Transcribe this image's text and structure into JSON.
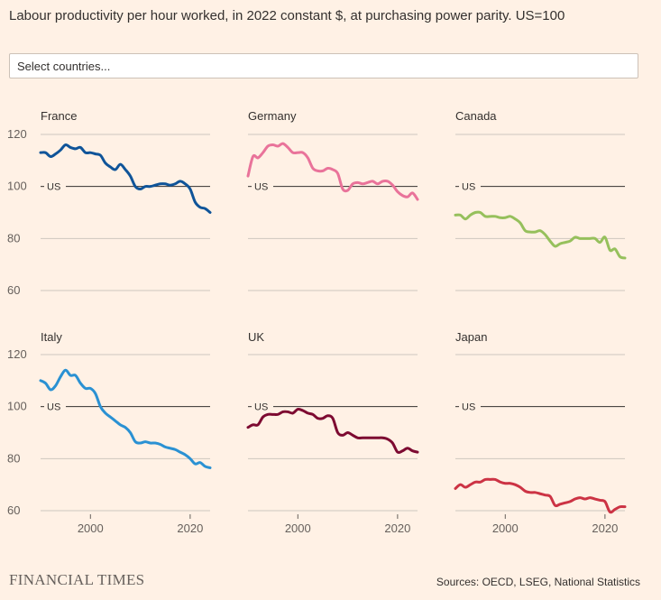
{
  "header": {
    "title": "Labour productivity per hour worked, in 2022 constant $, at purchasing power parity. US=100"
  },
  "controls": {
    "country_search_placeholder": "Select countries..."
  },
  "footer": {
    "logo": "FINANCIAL TIMES",
    "source": "Sources: OECD, LSEG, National Statistics"
  },
  "chart_data": {
    "type": "line",
    "layout": "small-multiples",
    "title": "Labour productivity per hour worked, in 2022 constant $, at purchasing power parity. US=100",
    "xlim": [
      1990,
      2024
    ],
    "ylim": [
      60,
      120
    ],
    "y_ticks": [
      60,
      80,
      100,
      120
    ],
    "x_ticks": [
      2000,
      2020
    ],
    "reference_line": {
      "value": 100,
      "label": "US"
    },
    "grid": true,
    "colors": {
      "France": "#0F5499",
      "Germany": "#E9739A",
      "Canada": "#96C05C",
      "Italy": "#2A91D3",
      "UK": "#7D0A31",
      "Japan": "#CC3344"
    },
    "x": [
      1990,
      1991,
      1992,
      1993,
      1994,
      1995,
      1996,
      1997,
      1998,
      1999,
      2000,
      2001,
      2002,
      2003,
      2004,
      2005,
      2006,
      2007,
      2008,
      2009,
      2010,
      2011,
      2012,
      2013,
      2014,
      2015,
      2016,
      2017,
      2018,
      2019,
      2020,
      2021,
      2022,
      2023,
      2024
    ],
    "series": [
      {
        "name": "France",
        "values": [
          113,
          113,
          111.5,
          112.5,
          114,
          116,
          115,
          114.5,
          115,
          113,
          113,
          112.5,
          112,
          109,
          107.5,
          106.5,
          108.5,
          106.5,
          104,
          100,
          99,
          100,
          100,
          100.5,
          101,
          101,
          100.5,
          101,
          102,
          101,
          99,
          94,
          92,
          91.5,
          90
        ]
      },
      {
        "name": "Germany",
        "values": [
          104,
          111.5,
          111,
          113,
          115.5,
          116,
          115.5,
          116.5,
          115,
          113,
          113,
          113,
          111,
          107,
          106,
          106,
          107,
          106.5,
          105,
          99,
          98.5,
          101,
          101.5,
          101,
          101.5,
          102,
          101,
          102,
          102,
          100.5,
          98,
          96.5,
          96,
          97.5,
          95
        ]
      },
      {
        "name": "Canada",
        "values": [
          89,
          89,
          87.5,
          89,
          90,
          90,
          88.5,
          88.5,
          88.5,
          88,
          88,
          88.5,
          87.5,
          86,
          83,
          82.5,
          82.5,
          83,
          81.5,
          79,
          77,
          78,
          78.5,
          79,
          80.5,
          80,
          80,
          80,
          80,
          78.5,
          80.5,
          75.5,
          76,
          73,
          72.5
        ]
      },
      {
        "name": "Italy",
        "values": [
          110,
          109,
          106.5,
          108,
          111.5,
          114,
          112,
          112,
          109,
          107,
          107,
          105,
          100,
          97.5,
          96,
          94.5,
          93,
          92,
          90,
          86.5,
          86,
          86.5,
          86,
          86,
          85.5,
          84.5,
          84,
          83.5,
          82.5,
          81.5,
          80,
          78,
          78.5,
          77,
          76.5
        ]
      },
      {
        "name": "UK",
        "values": [
          92,
          93,
          93,
          96,
          97,
          97,
          97,
          98,
          98,
          97.5,
          99,
          98.5,
          97.5,
          97,
          95.5,
          95.5,
          96.5,
          95.5,
          90,
          89,
          90,
          89,
          88,
          88,
          88,
          88,
          88,
          88,
          87.5,
          86,
          82.5,
          83,
          84,
          83,
          82.5
        ]
      },
      {
        "name": "Japan",
        "values": [
          68.5,
          70,
          69,
          70,
          71,
          71,
          72,
          72,
          72,
          71,
          70.5,
          70.5,
          70,
          69,
          67.5,
          67,
          67,
          66.5,
          66,
          65.5,
          62,
          62.5,
          63,
          63.5,
          64.5,
          65,
          64.5,
          65,
          64.5,
          64,
          63.5,
          59.5,
          60.5,
          61.5,
          61.5
        ]
      }
    ]
  }
}
